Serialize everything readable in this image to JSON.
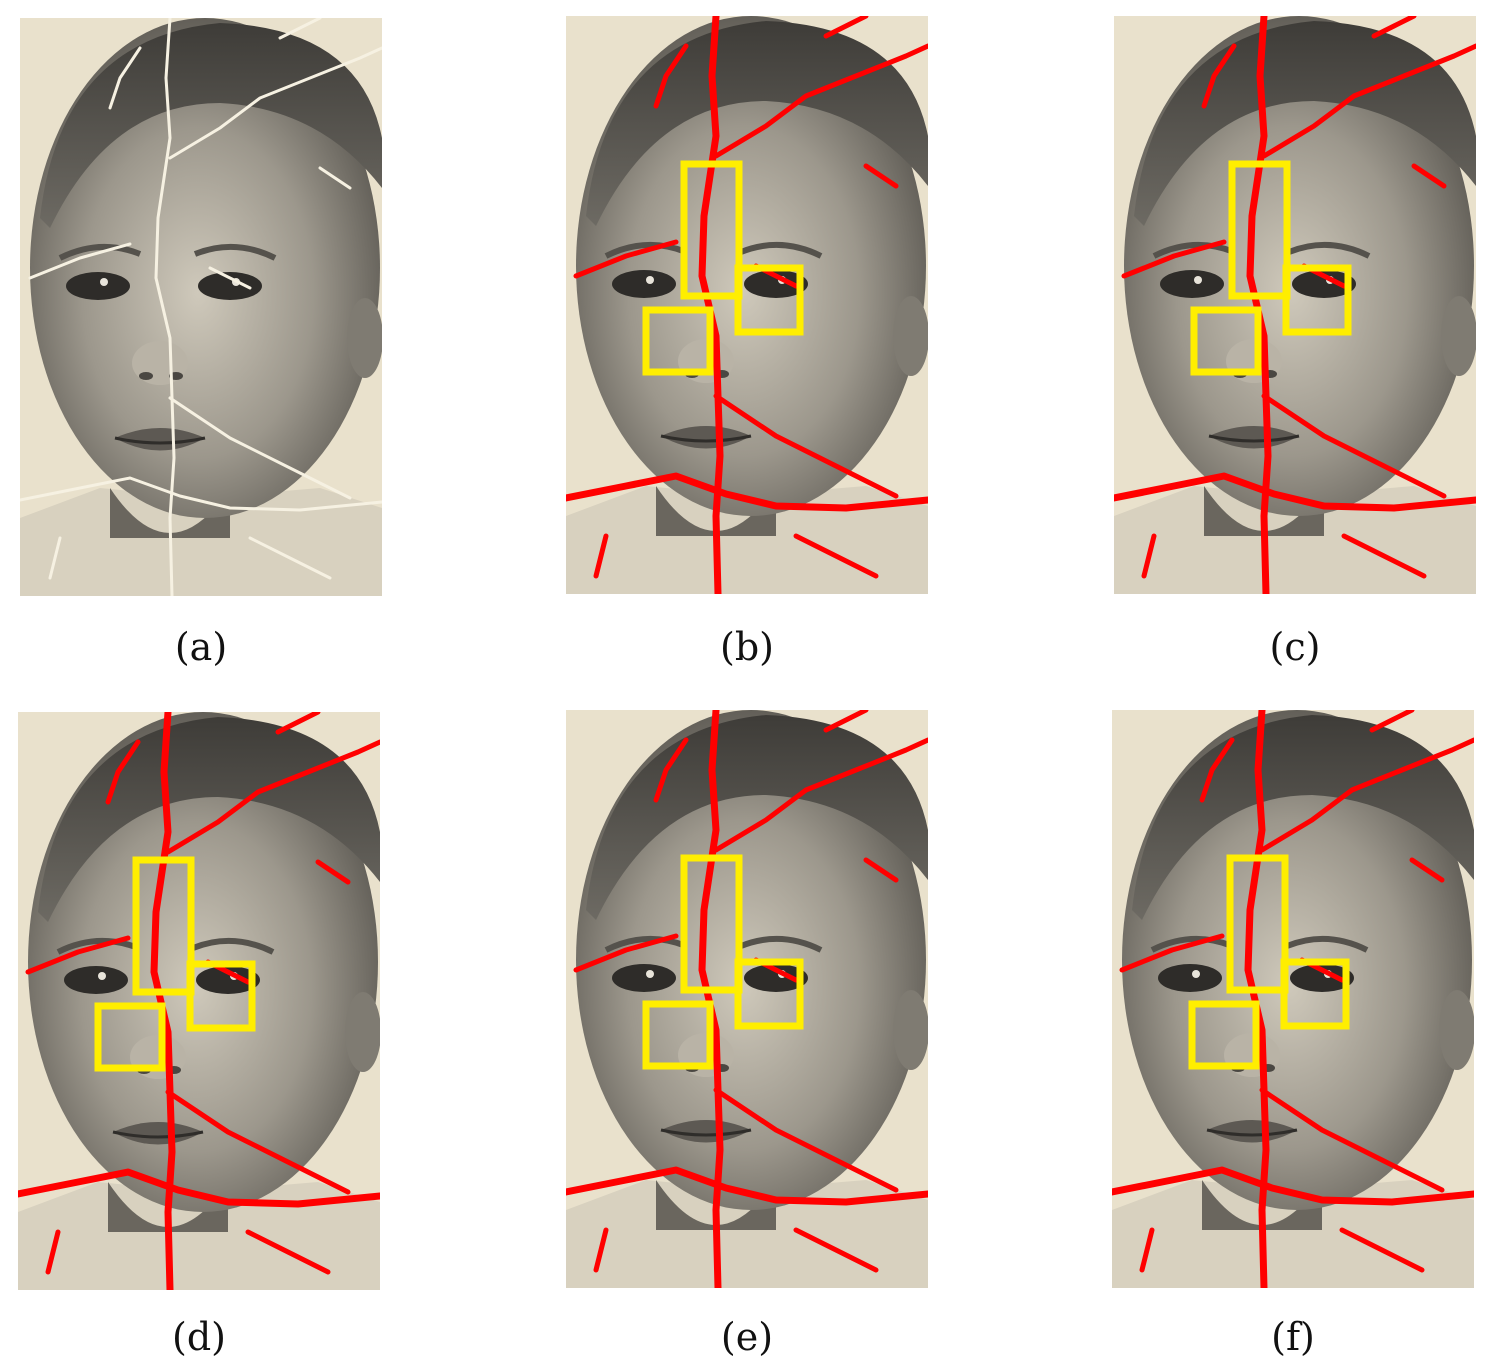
{
  "panels": [
    {
      "id": "a",
      "label": "(a)",
      "overlay": false
    },
    {
      "id": "b",
      "label": "(b)",
      "overlay": true
    },
    {
      "id": "c",
      "label": "(c)",
      "overlay": true
    },
    {
      "id": "d",
      "label": "(d)",
      "overlay": true
    },
    {
      "id": "e",
      "label": "(e)",
      "overlay": true
    },
    {
      "id": "f",
      "label": "(f)",
      "overlay": true
    }
  ],
  "colors": {
    "crack_mask": "#ff0000",
    "highlight_box": "#ffee00",
    "photo_bg": "#e9e1cc",
    "crack_line": "#f6f1e2"
  }
}
